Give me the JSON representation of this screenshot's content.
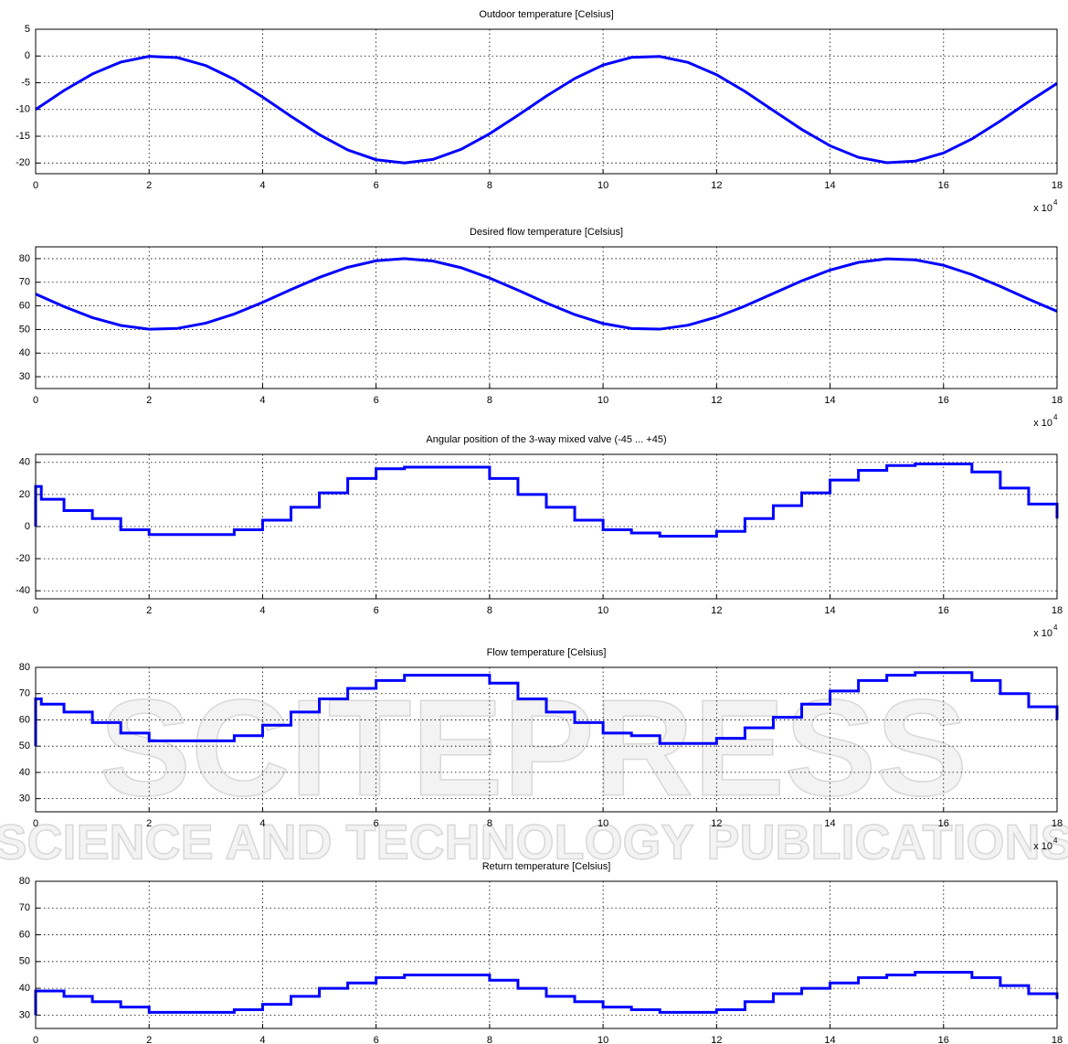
{
  "watermark": [
    "SCITEPRESS",
    "SCIENCE AND TECHNOLOGY PUBLICATIONS"
  ],
  "chart_data": [
    {
      "type": "line",
      "title": "Outdoor temperature [Celsius]",
      "color": "#0000ff",
      "grid": true,
      "x_multiplier": {
        "base": "x 10",
        "exponent": "4"
      },
      "xlim": [
        0,
        18
      ],
      "xticks": [
        0,
        2,
        4,
        6,
        8,
        10,
        12,
        14,
        16,
        18
      ],
      "ylim": [
        -22,
        5
      ],
      "yticks": [
        5,
        0,
        -5,
        -10,
        -15,
        -20
      ],
      "x": [
        0,
        0.5,
        1,
        1.5,
        2,
        2.5,
        3,
        3.5,
        4,
        4.5,
        5,
        5.5,
        6,
        6.5,
        7,
        7.5,
        8,
        8.5,
        9,
        9.5,
        10,
        10.5,
        11,
        11.5,
        12,
        12.5,
        13,
        13.5,
        14,
        14.5,
        15,
        15.5,
        16,
        16.5,
        17,
        17.5,
        18
      ],
      "values": [
        -10,
        -6.45,
        -3.36,
        -1.14,
        -0.07,
        -0.3,
        -1.79,
        -4.36,
        -7.66,
        -11.27,
        -14.7,
        -17.56,
        -19.39,
        -20,
        -19.33,
        -17.43,
        -14.53,
        -11.09,
        -7.49,
        -4.21,
        -1.69,
        -0.26,
        -0.09,
        -1.21,
        -3.5,
        -6.62,
        -10.18,
        -13.72,
        -16.78,
        -18.94,
        -19.95,
        -19.66,
        -18.13,
        -15.5,
        -12.16,
        -8.55,
        -5.13
      ]
    },
    {
      "type": "line",
      "title": "Desired flow temperature [Celsius]",
      "color": "#0000ff",
      "grid": true,
      "x_multiplier": {
        "base": "x 10",
        "exponent": "4"
      },
      "xlim": [
        0,
        18
      ],
      "xticks": [
        0,
        2,
        4,
        6,
        8,
        10,
        12,
        14,
        16,
        18
      ],
      "ylim": [
        25,
        85
      ],
      "yticks": [
        30,
        40,
        50,
        60,
        70,
        80
      ],
      "x": [
        0,
        0.5,
        1,
        1.5,
        2,
        2.5,
        3,
        3.5,
        4,
        4.5,
        5,
        5.5,
        6,
        6.5,
        7,
        7.5,
        8,
        8.5,
        9,
        9.5,
        10,
        10.5,
        11,
        11.5,
        12,
        12.5,
        13,
        13.5,
        14,
        14.5,
        15,
        15.5,
        16,
        16.5,
        17,
        17.5,
        18
      ],
      "values": [
        65,
        59.68,
        55.04,
        51.71,
        50.11,
        50.45,
        52.69,
        56.54,
        61.49,
        66.91,
        72.05,
        76.34,
        79.09,
        80,
        78.99,
        76.15,
        71.8,
        66.64,
        61.24,
        56.32,
        52.54,
        50.39,
        50.14,
        51.82,
        55.25,
        59.93,
        65.27,
        70.58,
        75.17,
        78.41,
        79.93,
        79.49,
        77.2,
        73.25,
        68.24,
        62.83,
        57.7
      ]
    },
    {
      "type": "line",
      "drawstyle": "steps",
      "title": "Angular position of the 3-way mixed valve (-45 ... +45)",
      "color": "#0000ff",
      "grid": true,
      "x_multiplier": {
        "base": "x 10",
        "exponent": "4"
      },
      "xlim": [
        0,
        18
      ],
      "xticks": [
        0,
        2,
        4,
        6,
        8,
        10,
        12,
        14,
        16,
        18
      ],
      "ylim": [
        -45,
        45
      ],
      "yticks": [
        -40,
        -20,
        0,
        20,
        40
      ],
      "x": [
        0,
        0,
        0.1,
        0.5,
        1,
        1.5,
        2,
        2.5,
        3,
        3.5,
        4,
        4.5,
        5,
        5.5,
        6,
        6.5,
        7,
        7.5,
        8,
        8.5,
        9,
        9.5,
        10,
        10.5,
        11,
        11.5,
        12,
        12.5,
        13,
        13.5,
        14,
        14.5,
        15,
        15.5,
        16,
        16.5,
        17,
        17.5,
        18
      ],
      "values": [
        0,
        25,
        17,
        10,
        5,
        -2,
        -5,
        -5,
        -5,
        -2,
        4,
        12,
        21,
        30,
        36,
        37,
        37,
        37,
        30,
        20,
        12,
        4,
        -2,
        -4,
        -6,
        -6,
        -3,
        5,
        13,
        21,
        29,
        35,
        38,
        39,
        39,
        34,
        24,
        14,
        5
      ]
    },
    {
      "type": "line",
      "drawstyle": "steps",
      "title": "Flow temperature [Celsius]",
      "color": "#0000ff",
      "grid": true,
      "x_multiplier": {
        "base": "x 10",
        "exponent": "4"
      },
      "xlim": [
        0,
        18
      ],
      "xticks": [
        0,
        2,
        4,
        6,
        8,
        10,
        12,
        14,
        16,
        18
      ],
      "ylim": [
        25,
        80
      ],
      "yticks": [
        30,
        40,
        50,
        60,
        70,
        80
      ],
      "x": [
        0,
        0,
        0.1,
        0.5,
        1,
        1.5,
        2,
        2.5,
        3,
        3.5,
        4,
        4.5,
        5,
        5.5,
        6,
        6.5,
        7,
        7.5,
        8,
        8.5,
        9,
        9.5,
        10,
        10.5,
        11,
        11.5,
        12,
        12.5,
        13,
        13.5,
        14,
        14.5,
        15,
        15.5,
        16,
        16.5,
        17,
        17.5,
        18
      ],
      "values": [
        50,
        68,
        66,
        63,
        59,
        55,
        52,
        52,
        52,
        54,
        58,
        63,
        68,
        72,
        75,
        77,
        77,
        77,
        74,
        68,
        63,
        59,
        55,
        54,
        51,
        51,
        53,
        57,
        61,
        66,
        71,
        75,
        77,
        78,
        78,
        75,
        70,
        65,
        60
      ]
    },
    {
      "type": "line",
      "drawstyle": "steps",
      "title": "Return temperature [Celsius]",
      "color": "#0000ff",
      "grid": true,
      "xlim": [
        0,
        18
      ],
      "xticks": [
        0,
        2,
        4,
        6,
        8,
        10,
        12,
        14,
        16,
        18
      ],
      "ylim": [
        25,
        80
      ],
      "yticks": [
        30,
        40,
        50,
        60,
        70,
        80
      ],
      "x": [
        0,
        0,
        0.1,
        0.5,
        1,
        1.5,
        2,
        2.5,
        3,
        3.5,
        4,
        4.5,
        5,
        5.5,
        6,
        6.5,
        7,
        7.5,
        8,
        8.5,
        9,
        9.5,
        10,
        10.5,
        11,
        11.5,
        12,
        12.5,
        13,
        13.5,
        14,
        14.5,
        15,
        15.5,
        16,
        16.5,
        17,
        17.5,
        18
      ],
      "values": [
        30,
        39,
        39,
        37,
        35,
        33,
        31,
        31,
        31,
        32,
        34,
        37,
        40,
        42,
        44,
        45,
        45,
        45,
        43,
        40,
        37,
        35,
        33,
        32,
        31,
        31,
        32,
        35,
        38,
        40,
        42,
        44,
        45,
        46,
        46,
        44,
        41,
        38,
        36
      ]
    }
  ]
}
